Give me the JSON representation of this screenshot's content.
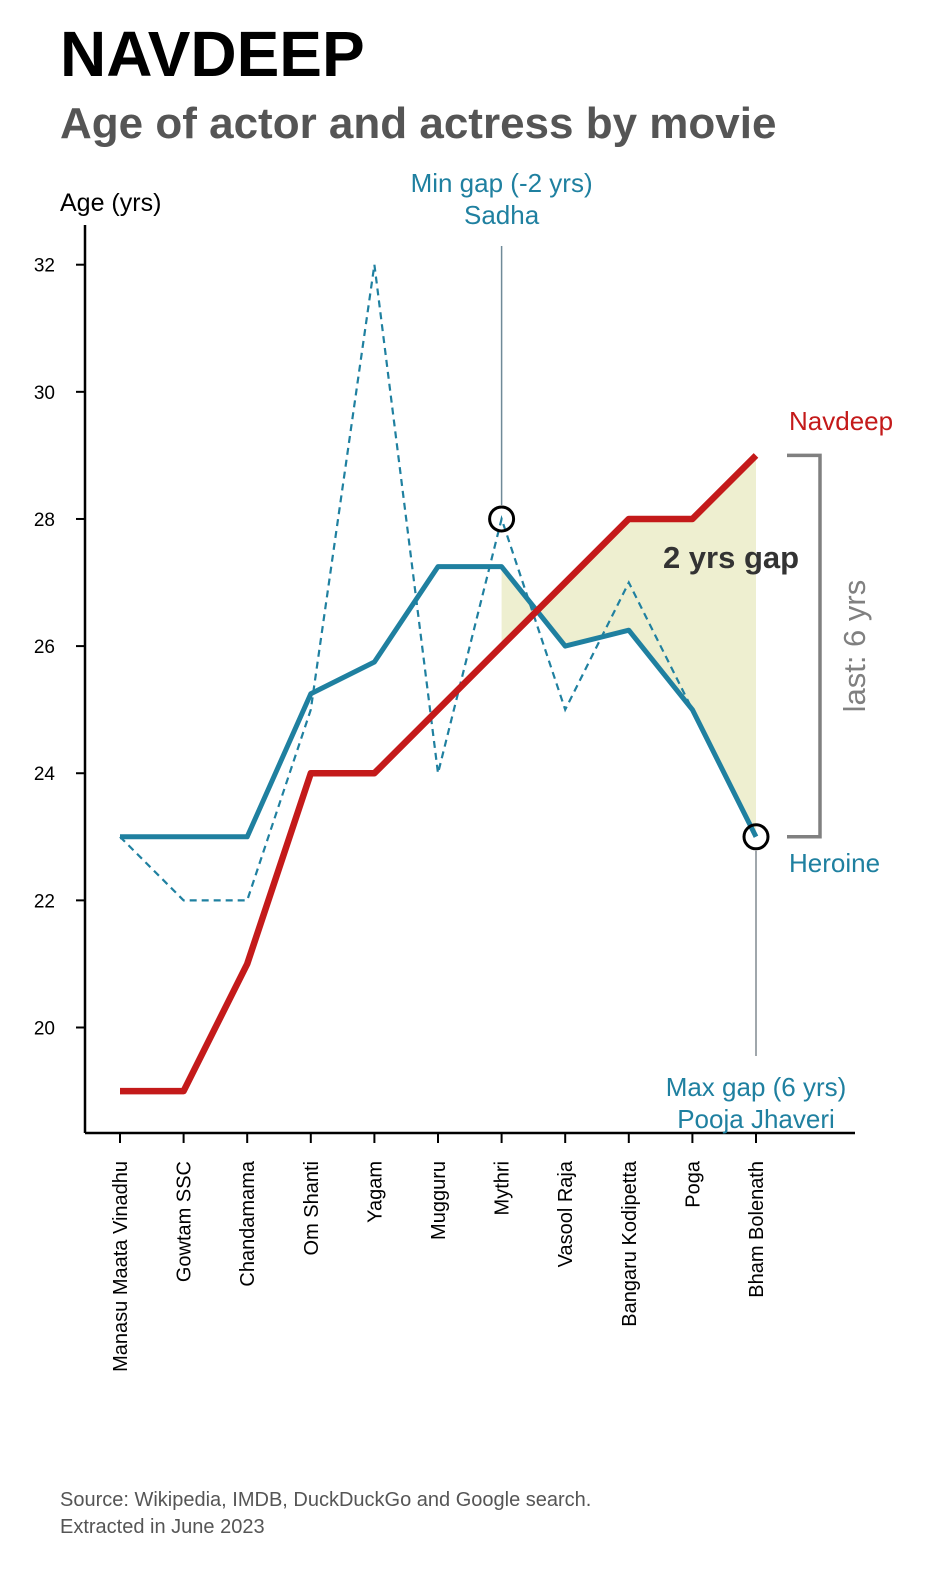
{
  "title": "NAVDEEP",
  "subtitle": "Age of actor and actress by movie",
  "source": {
    "line1": "Source: Wikipedia, IMDB, DuckDuckGo and Google search.",
    "line2": "Extracted in June 2023"
  },
  "colors": {
    "actor": "#c41a1a",
    "heroine": "#1f80a0",
    "gap_fill": "#eeefd0",
    "axis": "#000000",
    "bracket": "#808080",
    "gap_label": "#333333"
  },
  "chart_data": {
    "type": "line",
    "ylabel": "Age (yrs)",
    "ylim": [
      18.4,
      32.7
    ],
    "yticks": [
      20,
      22,
      24,
      26,
      28,
      30,
      32
    ],
    "categories": [
      "Manasu Maata Vinadhu",
      "Gowtam SSC",
      "Chandamama",
      "Om Shanti",
      "Yagam",
      "Mugguru",
      "Mythri",
      "Vasool Raja",
      "Bangaru Kodipetta",
      "Poga",
      "Bham Bolenath"
    ],
    "series": [
      {
        "name": "Navdeep",
        "style": "solid",
        "values": [
          19,
          19,
          21,
          24,
          24,
          25,
          26,
          27,
          28,
          28,
          29
        ]
      },
      {
        "name": "Heroine",
        "style": "solid",
        "note": "smoothed",
        "values": [
          23,
          23,
          23,
          25.25,
          25.75,
          27.25,
          27.25,
          26,
          26.25,
          25,
          23
        ]
      },
      {
        "name": "",
        "style": "dashed",
        "values": [
          23,
          22,
          22,
          25,
          32,
          24,
          28,
          25,
          27,
          25,
          23
        ]
      }
    ],
    "shaded_range": {
      "from": "Mythri",
      "to": "Bham Bolenath"
    },
    "annotations": {
      "min_gap": {
        "line1": "Min gap (-2 yrs)",
        "line2": "Sadha",
        "category": "Mythri",
        "value": 28
      },
      "max_gap": {
        "line1": "Max gap (6 yrs)",
        "line2": "Pooja Jhaveri",
        "category": "Bham Bolenath",
        "value": 23
      },
      "gap_text": "2 yrs gap",
      "last_text": "last: 6 yrs",
      "actor_label": "Navdeep",
      "heroine_label": "Heroine"
    }
  }
}
